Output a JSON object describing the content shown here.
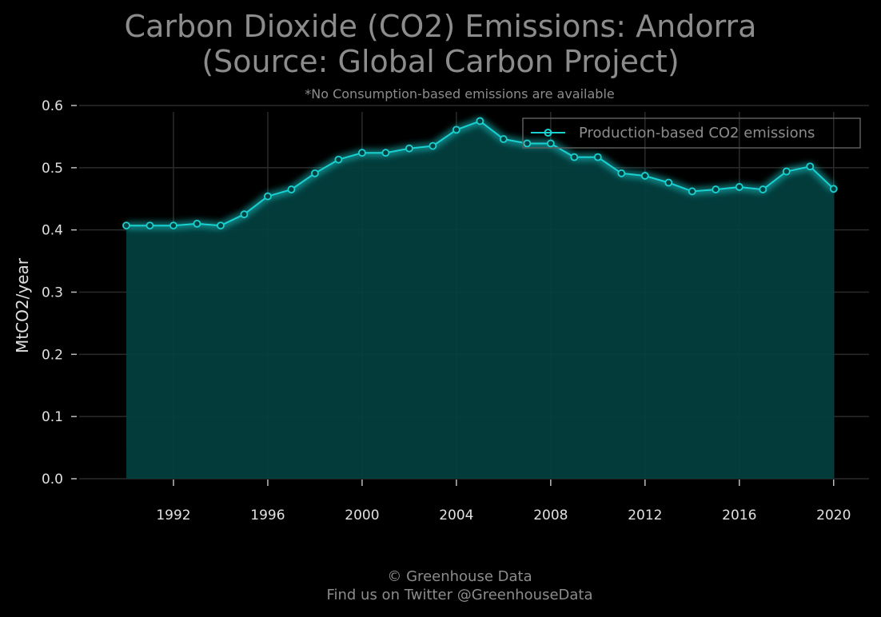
{
  "title_line1": "Carbon Dioxide (CO2) Emissions: Andorra",
  "title_line2": "(Source: Global Carbon Project)",
  "subtitle": "*No Consumption-based emissions are available",
  "footer_line1": "© Greenhouse Data",
  "footer_line2": "Find us on Twitter @GreenhouseData",
  "colors": {
    "background": "#000000",
    "line": "#1ad1d1",
    "fill": "#034040",
    "grid": "#2b2b2b",
    "text": "#8c8c8c",
    "tick_text": "#e0e0e0"
  },
  "chart_data": {
    "type": "area",
    "xlabel": "",
    "ylabel": "MtCO2/year",
    "xlim": [
      1988,
      2021.5
    ],
    "ylim": [
      0.0,
      0.6
    ],
    "xticks": [
      1992,
      1996,
      2000,
      2004,
      2008,
      2012,
      2016,
      2020
    ],
    "yticks": [
      0.0,
      0.1,
      0.2,
      0.3,
      0.4,
      0.5,
      0.6
    ],
    "ytick_labels": [
      "0.0",
      "0.1",
      "0.2",
      "0.3",
      "0.4",
      "0.5",
      "0.6"
    ],
    "grid": true,
    "legend_position": "top-right",
    "series": [
      {
        "name": "Production-based CO2 emissions",
        "x": [
          1990,
          1991,
          1992,
          1993,
          1994,
          1995,
          1996,
          1997,
          1998,
          1999,
          2000,
          2001,
          2002,
          2003,
          2004,
          2005,
          2006,
          2007,
          2008,
          2009,
          2010,
          2011,
          2012,
          2013,
          2014,
          2015,
          2016,
          2017,
          2018,
          2019,
          2020
        ],
        "y": [
          0.407,
          0.407,
          0.407,
          0.41,
          0.407,
          0.425,
          0.454,
          0.465,
          0.491,
          0.513,
          0.524,
          0.524,
          0.531,
          0.535,
          0.561,
          0.575,
          0.546,
          0.539,
          0.539,
          0.517,
          0.517,
          0.491,
          0.487,
          0.476,
          0.462,
          0.465,
          0.469,
          0.465,
          0.494,
          0.502,
          0.466
        ]
      }
    ]
  }
}
